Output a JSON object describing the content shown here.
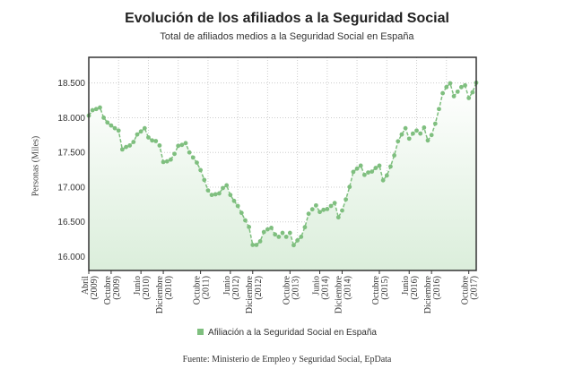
{
  "chart_data": {
    "type": "area",
    "title": "Evolución de los afiliados a la Seguridad Social",
    "subtitle": "Total de afiliados medios a la Seguridad Social en España",
    "xlabel": "",
    "ylabel": "Personas (Miles)",
    "ylim": [
      15800,
      18870
    ],
    "yticks": [
      16000,
      16500,
      17000,
      17500,
      18000,
      18500
    ],
    "ytick_labels": [
      "16.000",
      "16.500",
      "17.000",
      "17.500",
      "18.000",
      "18.500"
    ],
    "xticks": [
      {
        "index": 0,
        "line1": "Abril",
        "line2": "(2009)"
      },
      {
        "index": 6,
        "line1": "Octubre",
        "line2": "(2009)"
      },
      {
        "index": 14,
        "line1": "Junio",
        "line2": "(2010)"
      },
      {
        "index": 20,
        "line1": "Diciembre",
        "line2": "(2010)"
      },
      {
        "index": 30,
        "line1": "Octubre",
        "line2": "(2011)"
      },
      {
        "index": 38,
        "line1": "Junio",
        "line2": "(2012)"
      },
      {
        "index": 44,
        "line1": "Diciembre",
        "line2": "(2012)"
      },
      {
        "index": 54,
        "line1": "Octubre",
        "line2": "(2013)"
      },
      {
        "index": 62,
        "line1": "Junio",
        "line2": "(2014)"
      },
      {
        "index": 68,
        "line1": "Diciembre",
        "line2": "(2014)"
      },
      {
        "index": 78,
        "line1": "Octubre",
        "line2": "(2015)"
      },
      {
        "index": 86,
        "line1": "Junio",
        "line2": "(2016)"
      },
      {
        "index": 92,
        "line1": "Diciembre",
        "line2": "(2016)"
      },
      {
        "index": 102,
        "line1": "Octubre",
        "line2": "(2017)"
      }
    ],
    "grid": true,
    "legend_position": "bottom",
    "series": [
      {
        "name": "Afiliación a la Seguridad Social en España",
        "color": "#7fbf7f",
        "x": [
          "2009-04",
          "2009-05",
          "2009-06",
          "2009-07",
          "2009-08",
          "2009-09",
          "2009-10",
          "2009-11",
          "2009-12",
          "2010-01",
          "2010-02",
          "2010-03",
          "2010-04",
          "2010-05",
          "2010-06",
          "2010-07",
          "2010-08",
          "2010-09",
          "2010-10",
          "2010-11",
          "2010-12",
          "2011-01",
          "2011-02",
          "2011-03",
          "2011-04",
          "2011-05",
          "2011-06",
          "2011-07",
          "2011-08",
          "2011-09",
          "2011-10",
          "2011-11",
          "2011-12",
          "2012-01",
          "2012-02",
          "2012-03",
          "2012-04",
          "2012-05",
          "2012-06",
          "2012-07",
          "2012-08",
          "2012-09",
          "2012-10",
          "2012-11",
          "2012-12",
          "2013-01",
          "2013-02",
          "2013-03",
          "2013-04",
          "2013-05",
          "2013-06",
          "2013-07",
          "2013-08",
          "2013-09",
          "2013-10",
          "2013-11",
          "2013-12",
          "2014-01",
          "2014-02",
          "2014-03",
          "2014-04",
          "2014-05",
          "2014-06",
          "2014-07",
          "2014-08",
          "2014-09",
          "2014-10",
          "2014-11",
          "2014-12",
          "2015-01",
          "2015-02",
          "2015-03",
          "2015-04",
          "2015-05",
          "2015-06",
          "2015-07",
          "2015-08",
          "2015-09",
          "2015-10",
          "2015-11",
          "2015-12",
          "2016-01",
          "2016-02",
          "2016-03",
          "2016-04",
          "2016-05",
          "2016-06",
          "2016-07",
          "2016-08",
          "2016-09",
          "2016-10",
          "2016-11",
          "2016-12",
          "2017-01",
          "2017-02",
          "2017-03",
          "2017-04",
          "2017-05",
          "2017-06",
          "2017-07",
          "2017-08",
          "2017-09",
          "2017-10",
          "2017-11",
          "2017-12"
        ],
        "values": [
          18030,
          18108,
          18125,
          18147,
          18000,
          17931,
          17888,
          17849,
          17815,
          17543,
          17578,
          17600,
          17651,
          17759,
          17802,
          17849,
          17716,
          17673,
          17664,
          17600,
          17362,
          17371,
          17397,
          17479,
          17595,
          17608,
          17634,
          17500,
          17427,
          17353,
          17246,
          17104,
          16953,
          16888,
          16897,
          16910,
          16987,
          17026,
          16888,
          16802,
          16729,
          16630,
          16522,
          16427,
          16168,
          16168,
          16220,
          16354,
          16392,
          16414,
          16319,
          16285,
          16341,
          16285,
          16341,
          16164,
          16233,
          16285,
          16423,
          16617,
          16681,
          16737,
          16642,
          16673,
          16685,
          16729,
          16772,
          16565,
          16664,
          16823,
          17004,
          17220,
          17267,
          17310,
          17177,
          17211,
          17224,
          17276,
          17310,
          17099,
          17168,
          17297,
          17457,
          17660,
          17759,
          17849,
          17698,
          17772,
          17815,
          17772,
          17858,
          17673,
          17750,
          17914,
          18125,
          18353,
          18440,
          18496,
          18310,
          18375,
          18440,
          18466,
          18284,
          18366,
          18504
        ]
      }
    ],
    "source": "Fuente: Ministerio de Empleo y Seguridad Social, EpData"
  }
}
